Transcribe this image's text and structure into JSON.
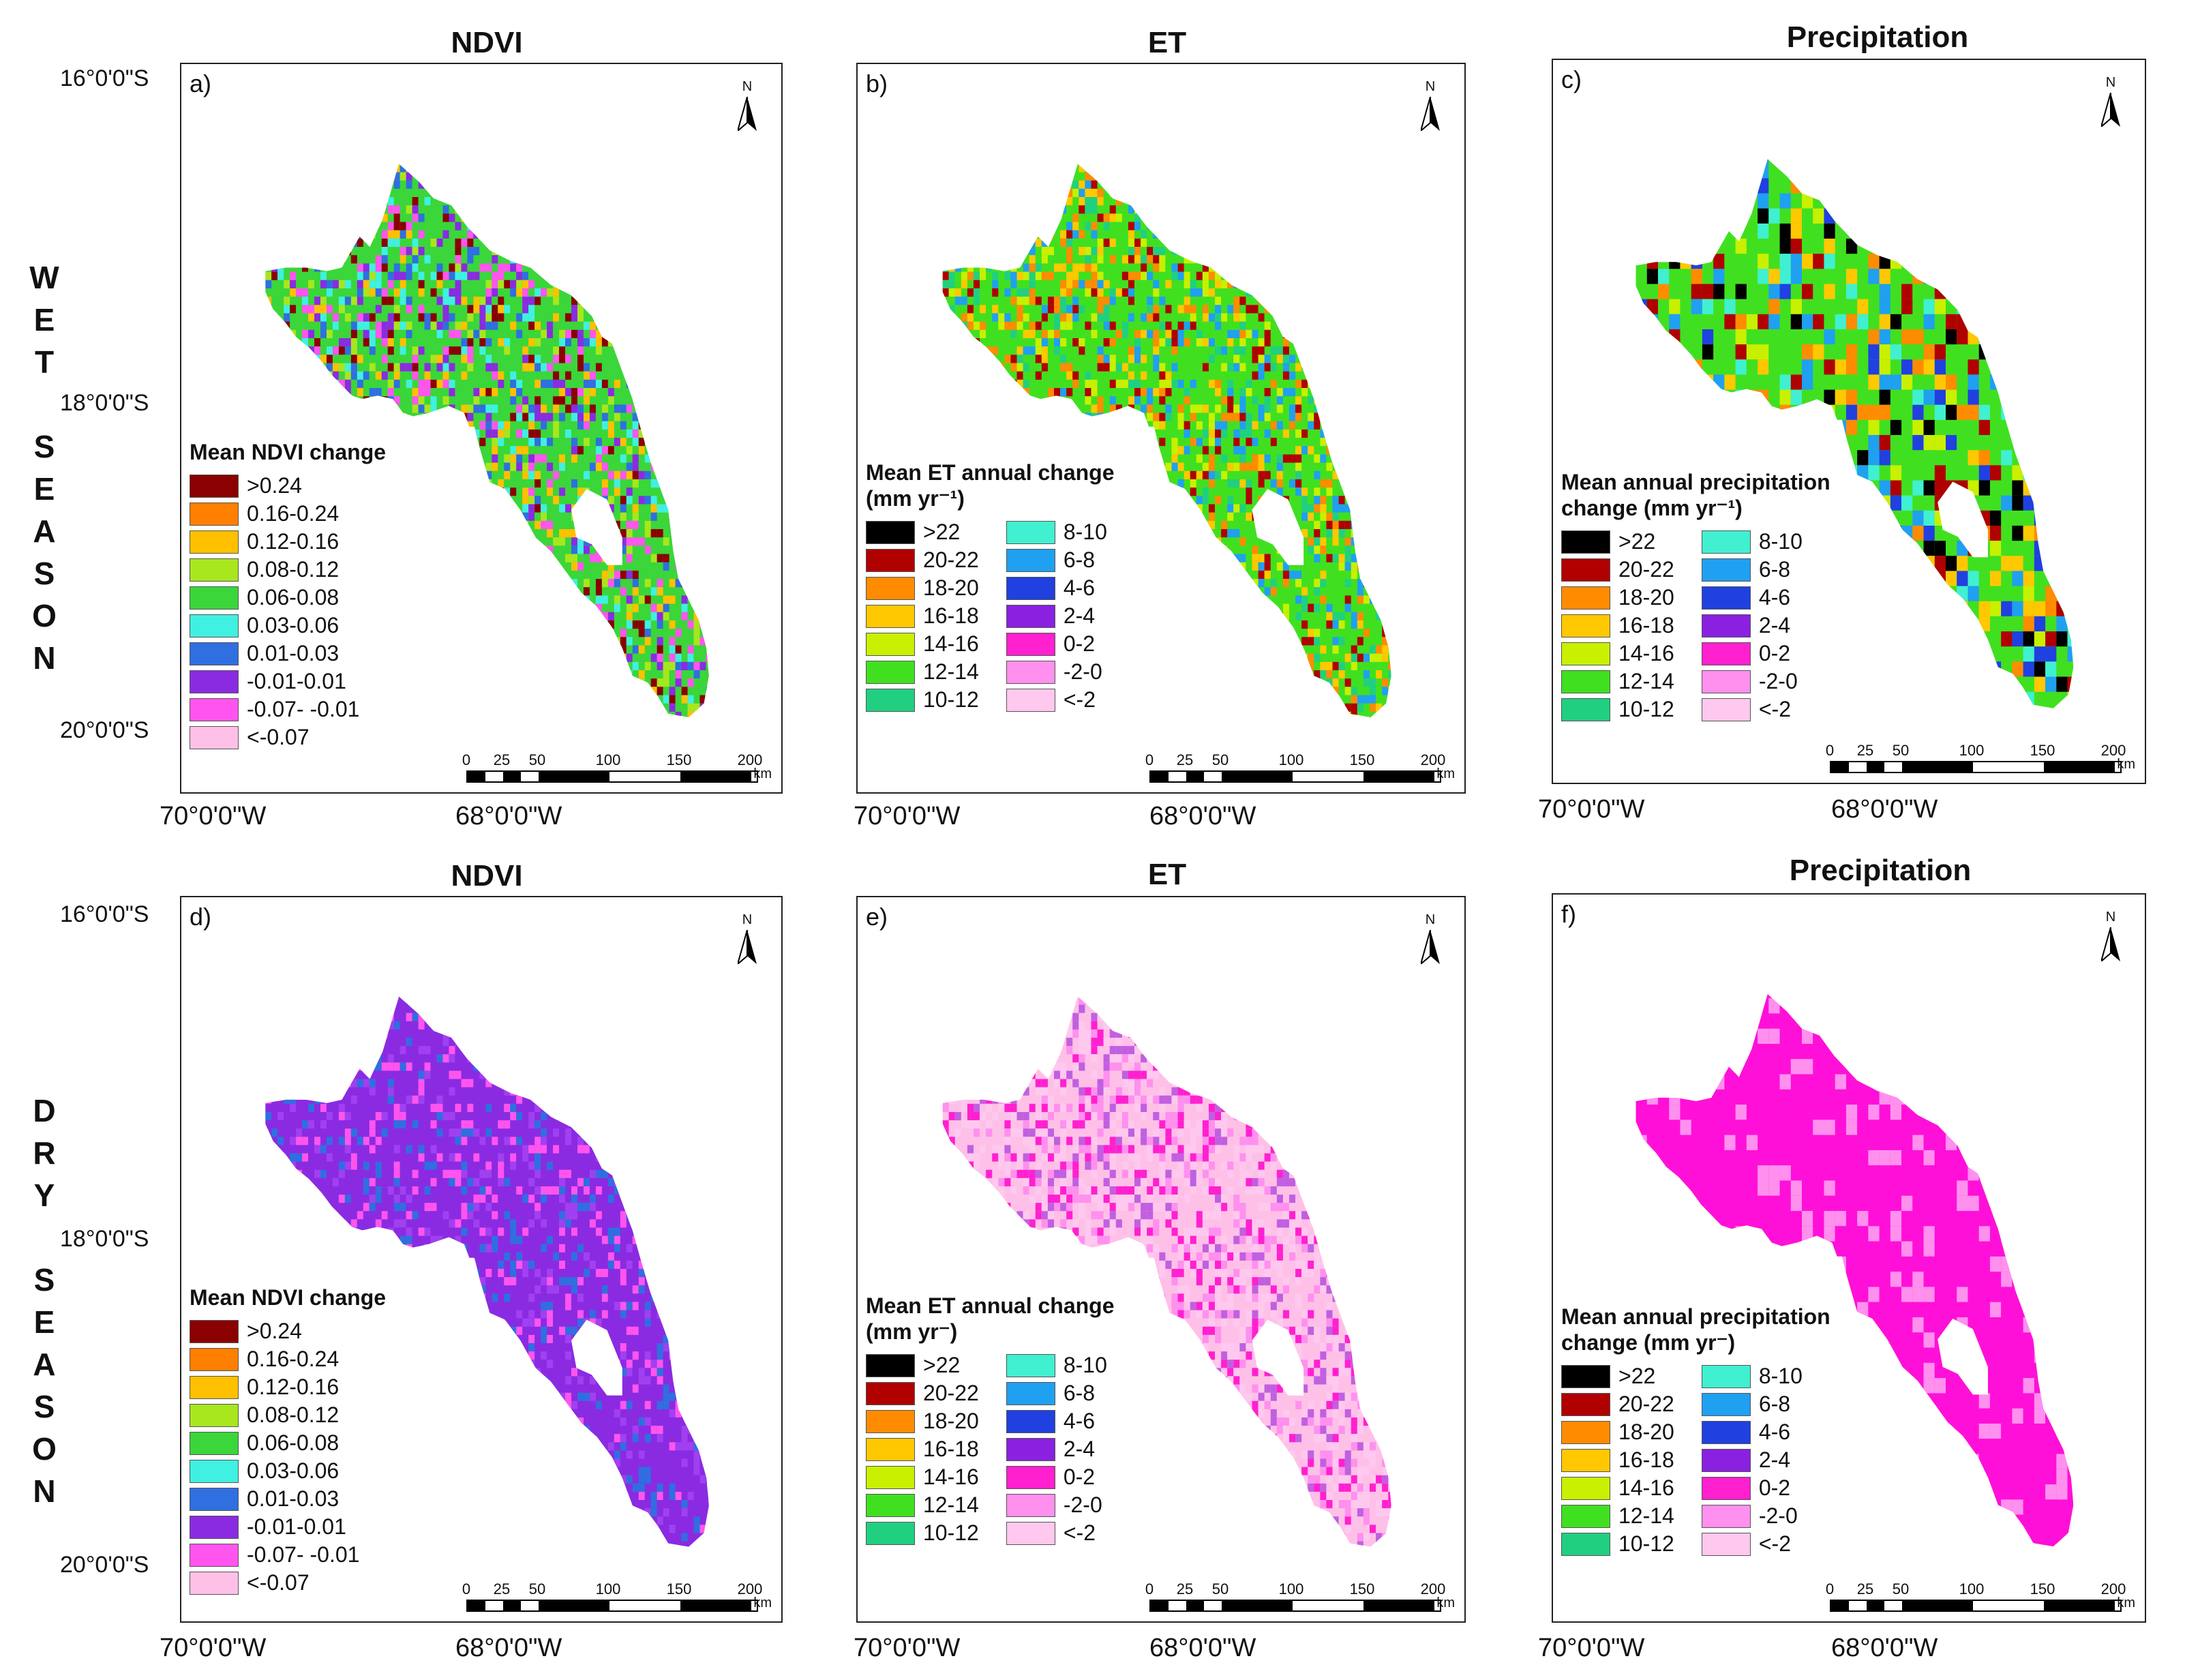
{
  "seasons": [
    {
      "id": "wet",
      "letters": [
        "W",
        "E",
        "T",
        "",
        "S",
        "E",
        "A",
        "S",
        "O",
        "N"
      ]
    },
    {
      "id": "dry",
      "letters": [
        "D",
        "R",
        "Y",
        "",
        "S",
        "E",
        "A",
        "S",
        "O",
        "N"
      ]
    }
  ],
  "titles": {
    "ndvi": "NDVI",
    "et": "ET",
    "precip": "Precipitation"
  },
  "panel_letters": [
    "a)",
    "b)",
    "c)",
    "d)",
    "e)",
    "f)"
  ],
  "north_label": "N",
  "lat_labels": [
    "16°0'0\"S",
    "18°0'0\"S",
    "20°0'0\"S"
  ],
  "lon_labels": [
    "70°0'0\"W",
    "68°0'0\"W"
  ],
  "scalebar": {
    "ticks": [
      "0",
      "25",
      "50",
      "100",
      "150",
      "200"
    ],
    "unit": "km"
  },
  "legends": {
    "ndvi": {
      "title": "Mean NDVI change",
      "items": [
        {
          "label": ">0.24",
          "color": "#8b0000"
        },
        {
          "label": "0.16-0.24",
          "color": "#ff7f00"
        },
        {
          "label": "0.12-0.16",
          "color": "#ffc000"
        },
        {
          "label": "0.08-0.12",
          "color": "#a8e61d"
        },
        {
          "label": "0.06-0.08",
          "color": "#3ad63a"
        },
        {
          "label": "0.03-0.06",
          "color": "#40f0e0"
        },
        {
          "label": "0.01-0.03",
          "color": "#2f6fe0"
        },
        {
          "label": "-0.01-0.01",
          "color": "#8a2be2"
        },
        {
          "label": "-0.07- -0.01",
          "color": "#ff55ee"
        },
        {
          "label": "<-0.07",
          "color": "#ffc0e8"
        }
      ]
    },
    "et_wet": {
      "title": "Mean ET annual change",
      "subtitle": "(mm yr⁻¹)",
      "col1": [
        {
          "label": ">22",
          "color": "#000000"
        },
        {
          "label": "20-22",
          "color": "#b00000"
        },
        {
          "label": "18-20",
          "color": "#ff8c00"
        },
        {
          "label": "16-18",
          "color": "#ffc800"
        },
        {
          "label": "14-16",
          "color": "#c8f000"
        },
        {
          "label": "12-14",
          "color": "#40e020"
        },
        {
          "label": "10-12",
          "color": "#20d080"
        }
      ],
      "col2": [
        {
          "label": "8-10",
          "color": "#40f0d0"
        },
        {
          "label": "6-8",
          "color": "#20a0f0"
        },
        {
          "label": "4-6",
          "color": "#2040e0"
        },
        {
          "label": "2-4",
          "color": "#8a20e0"
        },
        {
          "label": "0-2",
          "color": "#ff20d0"
        },
        {
          "label": "-2-0",
          "color": "#ff90ee"
        },
        {
          "label": "<-2",
          "color": "#ffc8ee"
        }
      ]
    },
    "et_dry": {
      "title": "Mean ET annual change",
      "subtitle": "(mm yr⁻)"
    },
    "precip_wet": {
      "title": "Mean annual precipitation",
      "subtitle": "change (mm yr⁻¹)"
    },
    "precip_dry": {
      "title": "Mean annual precipitation",
      "subtitle": "change (mm yr⁻)"
    }
  },
  "colors": {
    "frame": "#222222",
    "ndvi_wet_base": "#3ad63a",
    "ndvi_dry_base": "#8a2be2",
    "et_wet_base": "#40e020",
    "et_dry_base": "#ffc0e8",
    "pr_wet_base": "#40e020",
    "pr_dry_base": "#ff10d8"
  }
}
